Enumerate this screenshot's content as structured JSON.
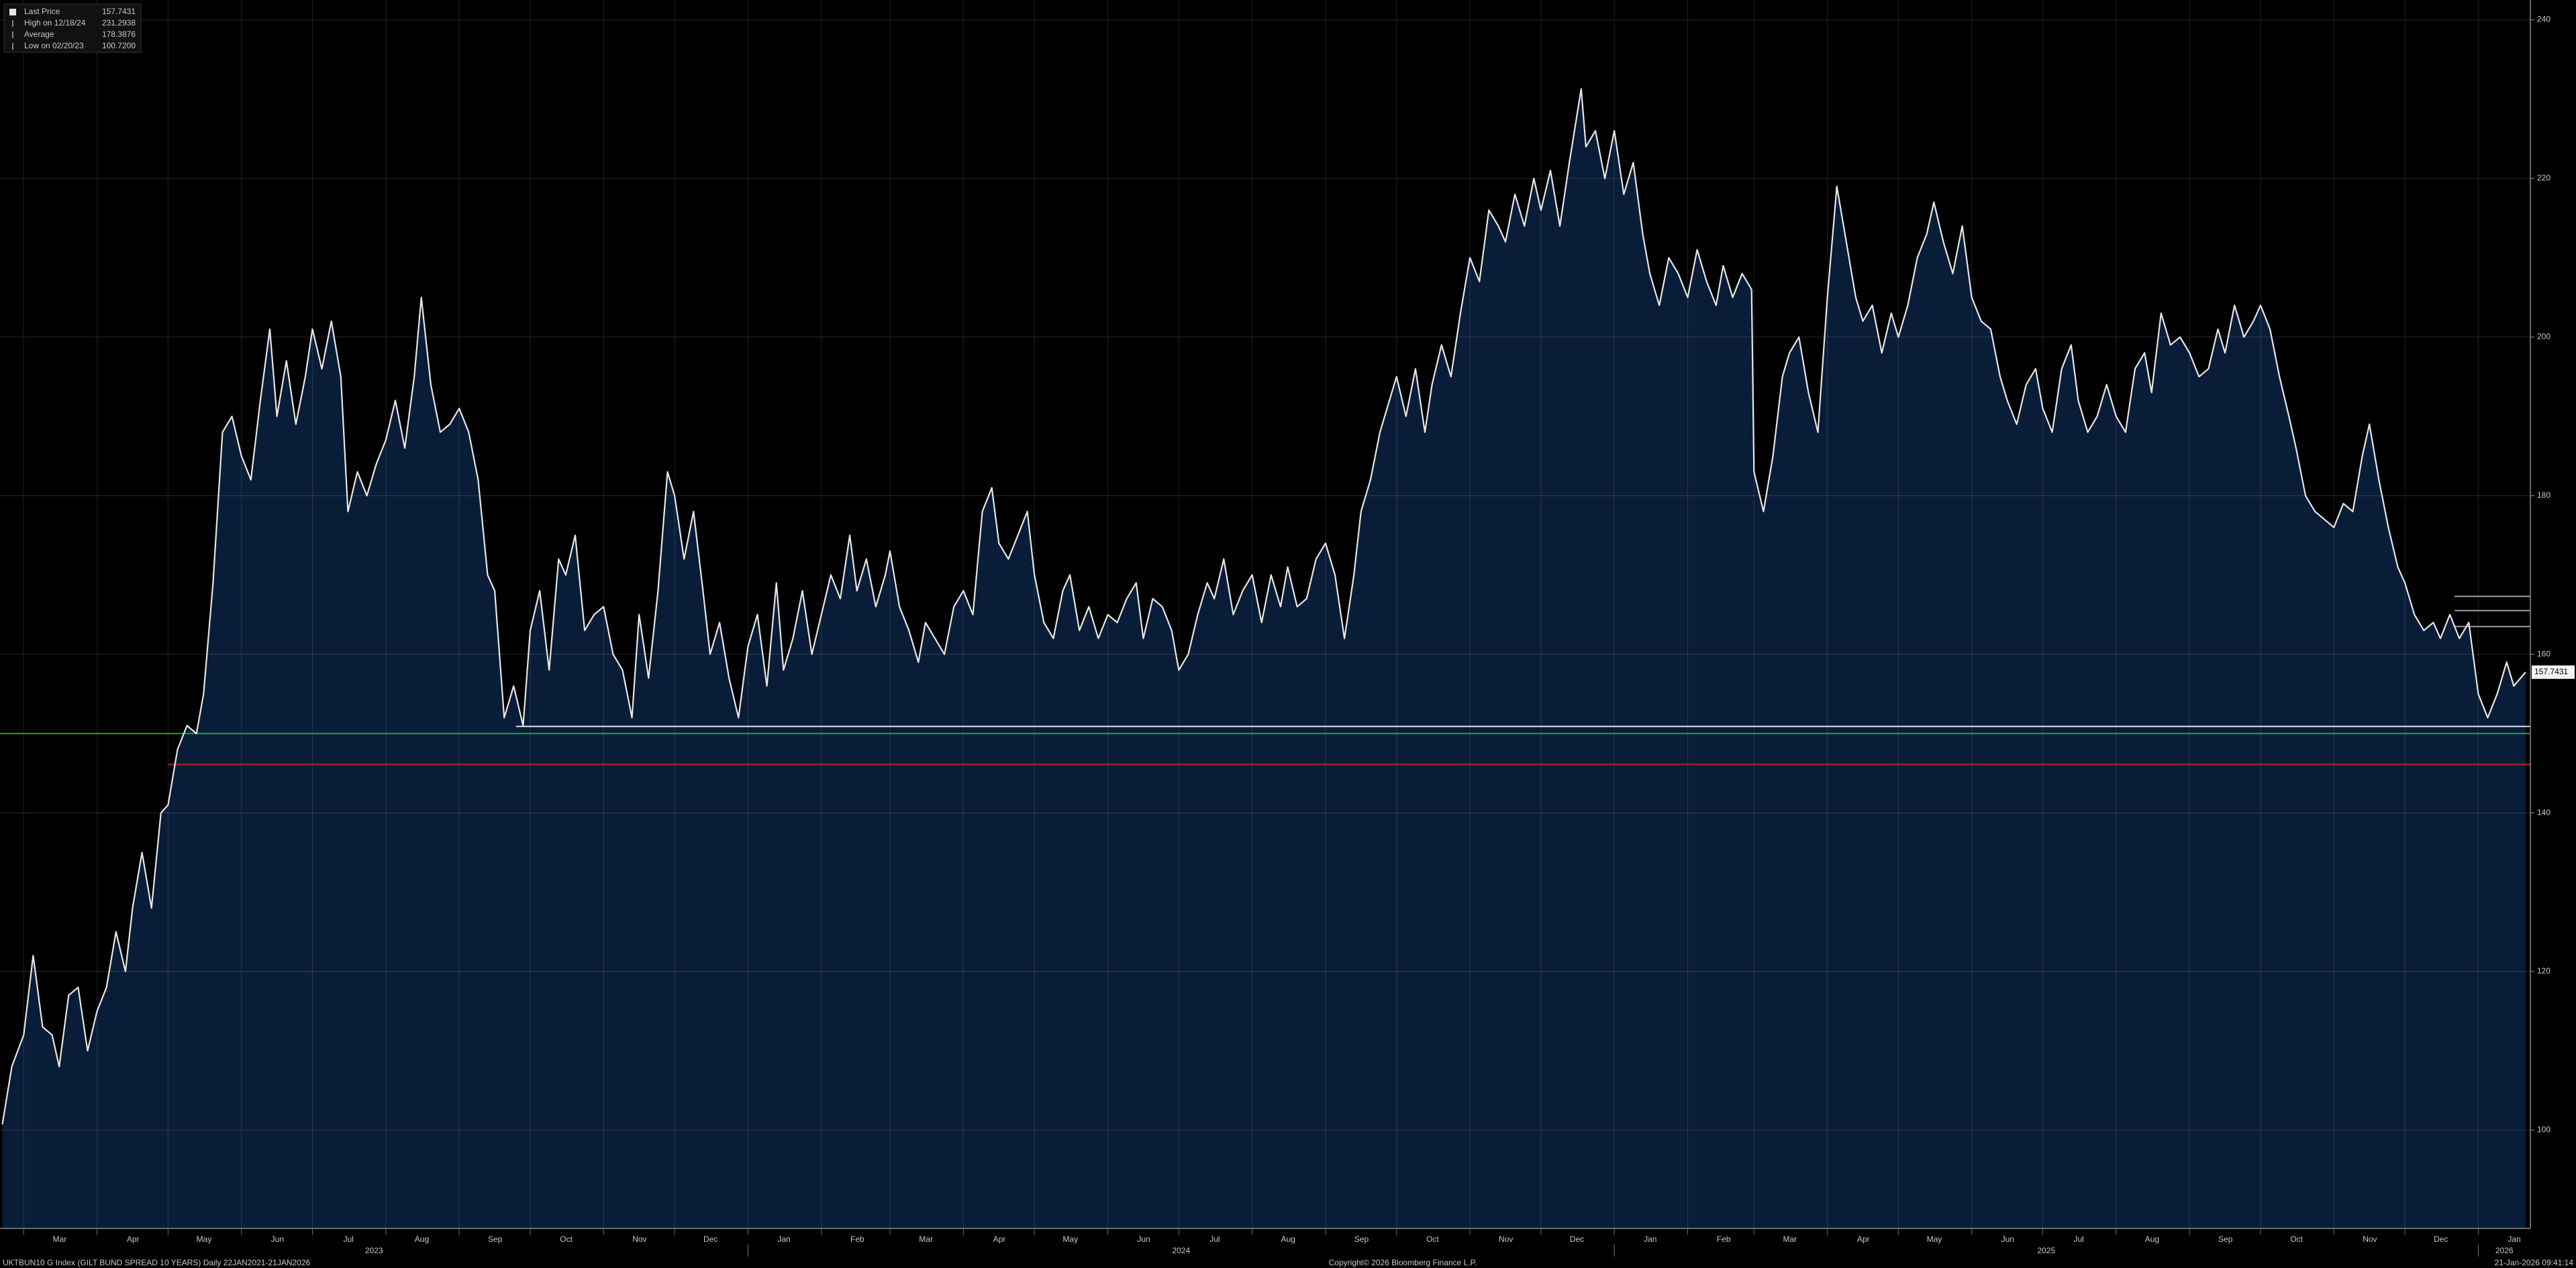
{
  "chart_data": {
    "type": "area",
    "title": "UKTBUN10 G Index (GILT BUND SPREAD 10 YEARS) Daily 22JAN2021-21JAN2026",
    "copyright": "Copyright© 2026 Bloomberg Finance L.P.",
    "timestamp": "21-Jan-2026 09:41:14",
    "legend": [
      {
        "label": "Last Price",
        "value": 157.7431
      },
      {
        "label": "High on 12/18/24",
        "value": 231.2938
      },
      {
        "label": "Average",
        "value": 178.3876
      },
      {
        "label": "Low on 02/20/23",
        "value": 100.72,
        "value_label": "100.7200"
      }
    ],
    "xlim": [
      "2023-02-19",
      "2026-01-23"
    ],
    "ylim": [
      87.6,
      242.5
    ],
    "yticks": [
      100,
      120,
      140,
      160,
      180,
      200,
      220,
      240
    ],
    "grid": true,
    "xticks": [
      {
        "value": "2023-03-01",
        "label": "Mar"
      },
      {
        "value": "2023-04-01",
        "label": "Apr"
      },
      {
        "value": "2023-05-01",
        "label": "May"
      },
      {
        "value": "2023-06-01",
        "label": "Jun"
      },
      {
        "value": "2023-07-01",
        "label": "Jul"
      },
      {
        "value": "2023-08-01",
        "label": "Aug"
      },
      {
        "value": "2023-09-01",
        "label": "Sep"
      },
      {
        "value": "2023-10-01",
        "label": "Oct"
      },
      {
        "value": "2023-11-01",
        "label": "Nov"
      },
      {
        "value": "2023-12-01",
        "label": "Dec"
      },
      {
        "value": "2024-01-01",
        "label": "Jan"
      },
      {
        "value": "2024-02-01",
        "label": "Feb"
      },
      {
        "value": "2024-03-01",
        "label": "Mar"
      },
      {
        "value": "2024-04-01",
        "label": "Apr"
      },
      {
        "value": "2024-05-01",
        "label": "May"
      },
      {
        "value": "2024-06-01",
        "label": "Jun"
      },
      {
        "value": "2024-07-01",
        "label": "Jul"
      },
      {
        "value": "2024-08-01",
        "label": "Aug"
      },
      {
        "value": "2024-09-01",
        "label": "Sep"
      },
      {
        "value": "2024-10-01",
        "label": "Oct"
      },
      {
        "value": "2024-11-01",
        "label": "Nov"
      },
      {
        "value": "2024-12-01",
        "label": "Dec"
      },
      {
        "value": "2025-01-01",
        "label": "Jan"
      },
      {
        "value": "2025-02-01",
        "label": "Feb"
      },
      {
        "value": "2025-03-01",
        "label": "Mar"
      },
      {
        "value": "2025-04-01",
        "label": "Apr"
      },
      {
        "value": "2025-05-01",
        "label": "May"
      },
      {
        "value": "2025-06-01",
        "label": "Jun"
      },
      {
        "value": "2025-07-01",
        "label": "Jul"
      },
      {
        "value": "2025-08-01",
        "label": "Aug"
      },
      {
        "value": "2025-09-01",
        "label": "Sep"
      },
      {
        "value": "2025-10-01",
        "label": "Oct"
      },
      {
        "value": "2025-11-01",
        "label": "Nov"
      },
      {
        "value": "2025-12-01",
        "label": "Dec"
      },
      {
        "value": "2026-01-01",
        "label": "Jan"
      }
    ],
    "year_ticks": [
      {
        "value": "2023-01-01",
        "label": "2023"
      },
      {
        "value": "2024-01-01",
        "label": "2024"
      },
      {
        "value": "2025-01-01",
        "label": "2025"
      },
      {
        "value": "2026-01-01",
        "label": "2026"
      }
    ],
    "reference_lines": [
      {
        "value": 150.0,
        "color": "#2f9e3c",
        "start": "2023-02-19"
      },
      {
        "value": 146.1,
        "color": "#b3262b",
        "start": "2023-05-01"
      },
      {
        "value": 150.9,
        "color": "#e0e0e0",
        "start": "2023-09-25"
      },
      {
        "value": 167.3,
        "color": "#9a9a9a",
        "start": "2025-12-22"
      },
      {
        "value": 165.5,
        "color": "#9a9a9a",
        "start": "2025-12-22"
      },
      {
        "value": 163.5,
        "color": "#9a9a9a",
        "start": "2025-12-22"
      }
    ],
    "series": [
      {
        "name": "Last Price",
        "color": "#e6e6e6",
        "fill": "#0a1d38",
        "x": [
          "2023-02-20",
          "2023-02-24",
          "2023-03-01",
          "2023-03-05",
          "2023-03-09",
          "2023-03-13",
          "2023-03-16",
          "2023-03-20",
          "2023-03-24",
          "2023-03-28",
          "2023-04-01",
          "2023-04-05",
          "2023-04-09",
          "2023-04-13",
          "2023-04-16",
          "2023-04-20",
          "2023-04-24",
          "2023-04-28",
          "2023-05-01",
          "2023-05-05",
          "2023-05-09",
          "2023-05-13",
          "2023-05-16",
          "2023-05-20",
          "2023-05-24",
          "2023-05-28",
          "2023-06-01",
          "2023-06-05",
          "2023-06-09",
          "2023-06-13",
          "2023-06-16",
          "2023-06-20",
          "2023-06-24",
          "2023-06-28",
          "2023-07-01",
          "2023-07-05",
          "2023-07-09",
          "2023-07-13",
          "2023-07-16",
          "2023-07-20",
          "2023-07-24",
          "2023-07-28",
          "2023-08-01",
          "2023-08-05",
          "2023-08-09",
          "2023-08-13",
          "2023-08-16",
          "2023-08-20",
          "2023-08-24",
          "2023-08-28",
          "2023-09-01",
          "2023-09-05",
          "2023-09-09",
          "2023-09-13",
          "2023-09-16",
          "2023-09-20",
          "2023-09-24",
          "2023-09-28",
          "2023-10-01",
          "2023-10-05",
          "2023-10-09",
          "2023-10-13",
          "2023-10-16",
          "2023-10-20",
          "2023-10-24",
          "2023-10-28",
          "2023-11-01",
          "2023-11-05",
          "2023-11-09",
          "2023-11-13",
          "2023-11-16",
          "2023-11-20",
          "2023-11-24",
          "2023-11-28",
          "2023-12-01",
          "2023-12-05",
          "2023-12-09",
          "2023-12-13",
          "2023-12-16",
          "2023-12-20",
          "2023-12-24",
          "2023-12-28",
          "2024-01-01",
          "2024-01-05",
          "2024-01-09",
          "2024-01-13",
          "2024-01-16",
          "2024-01-20",
          "2024-01-24",
          "2024-01-28",
          "2024-02-01",
          "2024-02-05",
          "2024-02-09",
          "2024-02-13",
          "2024-02-16",
          "2024-02-20",
          "2024-02-24",
          "2024-02-28",
          "2024-03-01",
          "2024-03-05",
          "2024-03-09",
          "2024-03-13",
          "2024-03-16",
          "2024-03-20",
          "2024-03-24",
          "2024-03-28",
          "2024-04-01",
          "2024-04-05",
          "2024-04-09",
          "2024-04-13",
          "2024-04-16",
          "2024-04-20",
          "2024-04-24",
          "2024-04-28",
          "2024-05-01",
          "2024-05-05",
          "2024-05-09",
          "2024-05-13",
          "2024-05-16",
          "2024-05-20",
          "2024-05-24",
          "2024-05-28",
          "2024-06-01",
          "2024-06-05",
          "2024-06-09",
          "2024-06-13",
          "2024-06-16",
          "2024-06-20",
          "2024-06-24",
          "2024-06-28",
          "2024-07-01",
          "2024-07-05",
          "2024-07-09",
          "2024-07-13",
          "2024-07-16",
          "2024-07-20",
          "2024-07-24",
          "2024-07-28",
          "2024-08-01",
          "2024-08-05",
          "2024-08-09",
          "2024-08-13",
          "2024-08-16",
          "2024-08-20",
          "2024-08-24",
          "2024-08-28",
          "2024-09-01",
          "2024-09-05",
          "2024-09-09",
          "2024-09-13",
          "2024-09-16",
          "2024-09-20",
          "2024-09-24",
          "2024-09-28",
          "2024-10-01",
          "2024-10-05",
          "2024-10-09",
          "2024-10-13",
          "2024-10-16",
          "2024-10-20",
          "2024-10-24",
          "2024-10-28",
          "2024-11-01",
          "2024-11-05",
          "2024-11-09",
          "2024-11-13",
          "2024-11-16",
          "2024-11-20",
          "2024-11-24",
          "2024-11-28",
          "2024-12-01",
          "2024-12-05",
          "2024-12-09",
          "2024-12-13",
          "2024-12-18",
          "2024-12-20",
          "2024-12-24",
          "2024-12-28",
          "2025-01-01",
          "2025-01-05",
          "2025-01-09",
          "2025-01-13",
          "2025-01-16",
          "2025-01-20",
          "2025-01-24",
          "2025-01-28",
          "2025-02-01",
          "2025-02-05",
          "2025-02-09",
          "2025-02-13",
          "2025-02-16",
          "2025-02-20",
          "2025-02-24",
          "2025-02-28",
          "2025-03-01",
          "2025-03-05",
          "2025-03-09",
          "2025-03-13",
          "2025-03-16",
          "2025-03-20",
          "2025-03-24",
          "2025-03-28",
          "2025-04-01",
          "2025-04-05",
          "2025-04-09",
          "2025-04-13",
          "2025-04-16",
          "2025-04-20",
          "2025-04-24",
          "2025-04-28",
          "2025-05-01",
          "2025-05-05",
          "2025-05-09",
          "2025-05-13",
          "2025-05-16",
          "2025-05-20",
          "2025-05-24",
          "2025-05-28",
          "2025-06-01",
          "2025-06-05",
          "2025-06-09",
          "2025-06-13",
          "2025-06-16",
          "2025-06-20",
          "2025-06-24",
          "2025-06-28",
          "2025-07-01",
          "2025-07-05",
          "2025-07-09",
          "2025-07-13",
          "2025-07-16",
          "2025-07-20",
          "2025-07-24",
          "2025-07-28",
          "2025-08-01",
          "2025-08-05",
          "2025-08-09",
          "2025-08-13",
          "2025-08-16",
          "2025-08-20",
          "2025-08-24",
          "2025-08-28",
          "2025-09-01",
          "2025-09-05",
          "2025-09-09",
          "2025-09-13",
          "2025-09-16",
          "2025-09-20",
          "2025-09-24",
          "2025-09-28",
          "2025-10-01",
          "2025-10-05",
          "2025-10-09",
          "2025-10-13",
          "2025-10-16",
          "2025-10-20",
          "2025-10-24",
          "2025-10-28",
          "2025-11-01",
          "2025-11-05",
          "2025-11-09",
          "2025-11-13",
          "2025-11-16",
          "2025-11-20",
          "2025-11-24",
          "2025-11-28",
          "2025-12-01",
          "2025-12-05",
          "2025-12-09",
          "2025-12-13",
          "2025-12-16",
          "2025-12-20",
          "2025-12-24",
          "2025-12-28",
          "2026-01-01",
          "2026-01-05",
          "2026-01-09",
          "2026-01-13",
          "2026-01-16",
          "2026-01-21"
        ],
        "values": [
          100.72,
          108,
          112,
          122,
          113,
          112,
          108,
          117,
          118,
          110,
          115,
          118,
          125,
          120,
          128,
          135,
          128,
          140,
          141,
          148,
          151,
          150,
          155,
          169,
          188,
          190,
          185,
          182,
          192,
          201,
          190,
          197,
          189,
          195,
          201,
          196,
          202,
          195,
          178,
          183,
          180,
          184,
          187,
          192,
          186,
          195,
          205,
          194,
          188,
          189,
          191,
          188,
          182,
          170,
          168,
          152,
          156,
          151,
          163,
          168,
          158,
          172,
          170,
          175,
          163,
          165,
          166,
          160,
          158,
          152,
          165,
          157,
          168,
          183,
          180,
          172,
          178,
          168,
          160,
          164,
          157,
          152,
          161,
          165,
          156,
          169,
          158,
          162,
          168,
          160,
          165,
          170,
          167,
          175,
          168,
          172,
          166,
          170,
          173,
          166,
          163,
          159,
          164,
          162,
          160,
          166,
          168,
          165,
          178,
          181,
          174,
          172,
          175,
          178,
          170,
          164,
          162,
          168,
          170,
          163,
          166,
          162,
          165,
          164,
          167,
          169,
          162,
          167,
          166,
          163,
          158,
          160,
          165,
          169,
          167,
          172,
          165,
          168,
          170,
          164,
          170,
          166,
          171,
          166,
          167,
          172,
          174,
          170,
          162,
          170,
          178,
          182,
          188,
          192,
          195,
          190,
          196,
          188,
          194,
          199,
          195,
          203,
          210,
          207,
          216,
          214,
          212,
          218,
          214,
          220,
          216,
          221,
          214,
          222,
          231.2938,
          224,
          226,
          220,
          226,
          218,
          222,
          213,
          208,
          204,
          210,
          208,
          205,
          211,
          207,
          204,
          209,
          205,
          208,
          206,
          183,
          178,
          185,
          195,
          198,
          200,
          193,
          188,
          205,
          219,
          212,
          205,
          202,
          204,
          198,
          203,
          200,
          204,
          210,
          213,
          217,
          212,
          208,
          214,
          205,
          202,
          201,
          195,
          192,
          189,
          194,
          196,
          191,
          188,
          196,
          199,
          192,
          188,
          190,
          194,
          190,
          188,
          196,
          198,
          193,
          203,
          199,
          200,
          198,
          195,
          196,
          201,
          198,
          204,
          200,
          202,
          204,
          201,
          195,
          190,
          186,
          180,
          178,
          177,
          176,
          179,
          178,
          185,
          189,
          182,
          176,
          171,
          169,
          165,
          163,
          164,
          162,
          165,
          162,
          164,
          155,
          152,
          155,
          159,
          156,
          157.7431
        ]
      }
    ]
  }
}
